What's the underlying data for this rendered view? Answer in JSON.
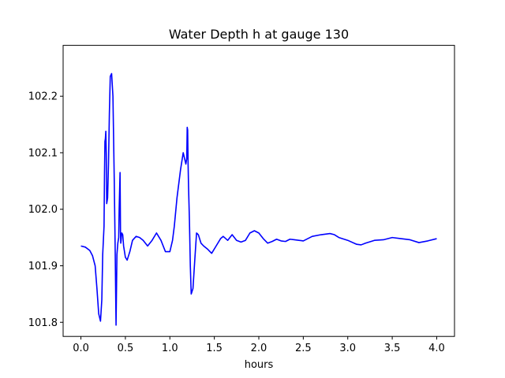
{
  "chart_data": {
    "type": "line",
    "title": "Water Depth h at gauge 130",
    "xlabel": "hours",
    "ylabel": "",
    "xlim": [
      -0.2,
      4.2
    ],
    "ylim": [
      101.775,
      102.29
    ],
    "xticks": [
      0.0,
      0.5,
      1.0,
      1.5,
      2.0,
      2.5,
      3.0,
      3.5,
      4.0
    ],
    "xtick_labels": [
      "0.0",
      "0.5",
      "1.0",
      "1.5",
      "2.0",
      "2.5",
      "3.0",
      "3.5",
      "4.0"
    ],
    "yticks": [
      101.8,
      101.9,
      102.0,
      102.1,
      102.2
    ],
    "ytick_labels": [
      "101.8",
      "101.9",
      "102.0",
      "102.1",
      "102.2"
    ],
    "grid": false,
    "legend": "none",
    "series": [
      {
        "color": "#0000ff",
        "x": [
          0.0,
          0.05,
          0.1,
          0.13,
          0.16,
          0.18,
          0.2,
          0.22,
          0.235,
          0.245,
          0.26,
          0.265,
          0.27,
          0.275,
          0.28,
          0.285,
          0.29,
          0.3,
          0.31,
          0.32,
          0.33,
          0.345,
          0.36,
          0.375,
          0.385,
          0.395,
          0.405,
          0.415,
          0.425,
          0.43,
          0.44,
          0.445,
          0.448,
          0.452,
          0.456,
          0.46,
          0.47,
          0.48,
          0.5,
          0.52,
          0.55,
          0.58,
          0.62,
          0.66,
          0.7,
          0.75,
          0.8,
          0.85,
          0.9,
          0.95,
          1.0,
          1.03,
          1.05,
          1.08,
          1.12,
          1.15,
          1.18,
          1.19,
          1.195,
          1.2,
          1.205,
          1.21,
          1.215,
          1.22,
          1.23,
          1.24,
          1.26,
          1.28,
          1.3,
          1.32,
          1.35,
          1.38,
          1.42,
          1.47,
          1.52,
          1.57,
          1.6,
          1.65,
          1.7,
          1.75,
          1.8,
          1.85,
          1.9,
          1.95,
          2.0,
          2.05,
          2.1,
          2.15,
          2.2,
          2.25,
          2.3,
          2.35,
          2.4,
          2.45,
          2.5,
          2.55,
          2.6,
          2.7,
          2.8,
          2.85,
          2.9,
          3.0,
          3.1,
          3.15,
          3.2,
          3.3,
          3.4,
          3.5,
          3.6,
          3.7,
          3.8,
          3.9,
          4.0
        ],
        "y": [
          101.935,
          101.933,
          101.927,
          101.918,
          101.9,
          101.86,
          101.815,
          101.802,
          101.84,
          101.92,
          101.97,
          102.06,
          102.12,
          102.125,
          102.138,
          102.1,
          102.01,
          102.02,
          102.08,
          102.17,
          102.235,
          102.24,
          102.2,
          102.05,
          101.93,
          101.795,
          101.92,
          101.94,
          101.95,
          102.0,
          102.065,
          101.96,
          101.94,
          101.945,
          101.955,
          101.958,
          101.955,
          101.935,
          101.915,
          101.91,
          101.925,
          101.945,
          101.952,
          101.95,
          101.945,
          101.935,
          101.945,
          101.958,
          101.945,
          101.925,
          101.925,
          101.945,
          101.97,
          102.02,
          102.07,
          102.1,
          102.08,
          102.09,
          102.145,
          102.14,
          102.08,
          102.04,
          102.01,
          101.98,
          101.9,
          101.85,
          101.86,
          101.91,
          101.958,
          101.955,
          101.94,
          101.935,
          101.93,
          101.922,
          101.935,
          101.948,
          101.952,
          101.945,
          101.955,
          101.945,
          101.942,
          101.945,
          101.958,
          101.962,
          101.958,
          101.948,
          101.94,
          101.943,
          101.947,
          101.944,
          101.943,
          101.947,
          101.946,
          101.945,
          101.944,
          101.948,
          101.952,
          101.955,
          101.957,
          101.955,
          101.95,
          101.945,
          101.938,
          101.937,
          101.94,
          101.945,
          101.946,
          101.95,
          101.948,
          101.946,
          101.941,
          101.944,
          101.948
        ]
      }
    ]
  }
}
